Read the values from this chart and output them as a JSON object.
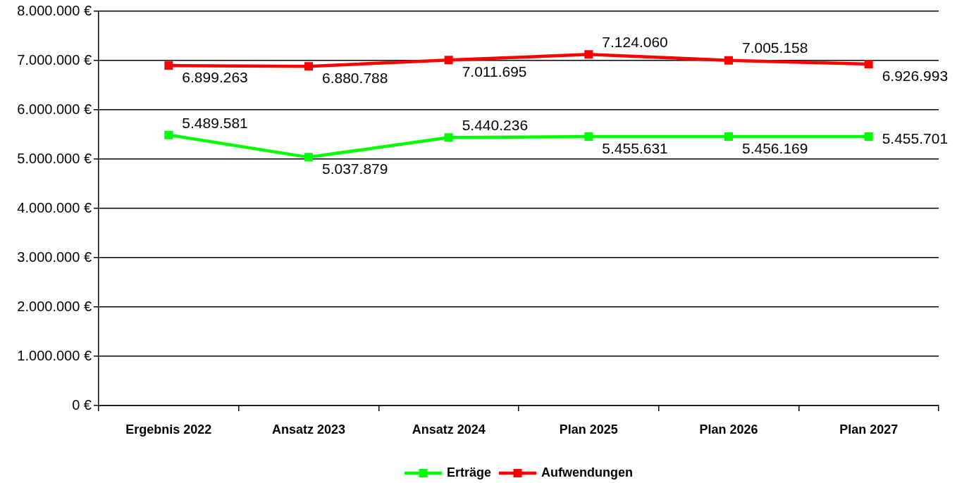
{
  "chart_data": {
    "type": "line",
    "categories": [
      "Ergebnis 2022",
      "Ansatz 2023",
      "Ansatz 2024",
      "Plan 2025",
      "Plan 2026",
      "Plan 2027"
    ],
    "series": [
      {
        "name": "Erträge",
        "color": "#00ff00",
        "values": [
          5489581,
          5037879,
          5440236,
          5455631,
          5456169,
          5455701
        ],
        "value_labels": [
          "5.489.581",
          "5.037.879",
          "5.440.236",
          "5.455.631",
          "5.456.169",
          "5.455.701"
        ]
      },
      {
        "name": "Aufwendungen",
        "color": "#ff0000",
        "values": [
          6899263,
          6880788,
          7011695,
          7124060,
          7005158,
          6926993
        ],
        "value_labels": [
          "6.899.263",
          "6.880.788",
          "7.011.695",
          "7.124.060",
          "7.005.158",
          "6.926.993"
        ]
      }
    ],
    "ylim": [
      0,
      8000000
    ],
    "yticks": [
      {
        "value": 0,
        "label": "0 €"
      },
      {
        "value": 1000000,
        "label": "1.000.000 €"
      },
      {
        "value": 2000000,
        "label": "2.000.000 €"
      },
      {
        "value": 3000000,
        "label": "3.000.000 €"
      },
      {
        "value": 4000000,
        "label": "4.000.000 €"
      },
      {
        "value": 5000000,
        "label": "5.000.000 €"
      },
      {
        "value": 6000000,
        "label": "6.000.000 €"
      },
      {
        "value": 7000000,
        "label": "7.000.000 €"
      },
      {
        "value": 8000000,
        "label": "8.000.000 €"
      }
    ],
    "grid": "y",
    "legend": "bottom",
    "marker": "square",
    "line_style": "solid"
  }
}
